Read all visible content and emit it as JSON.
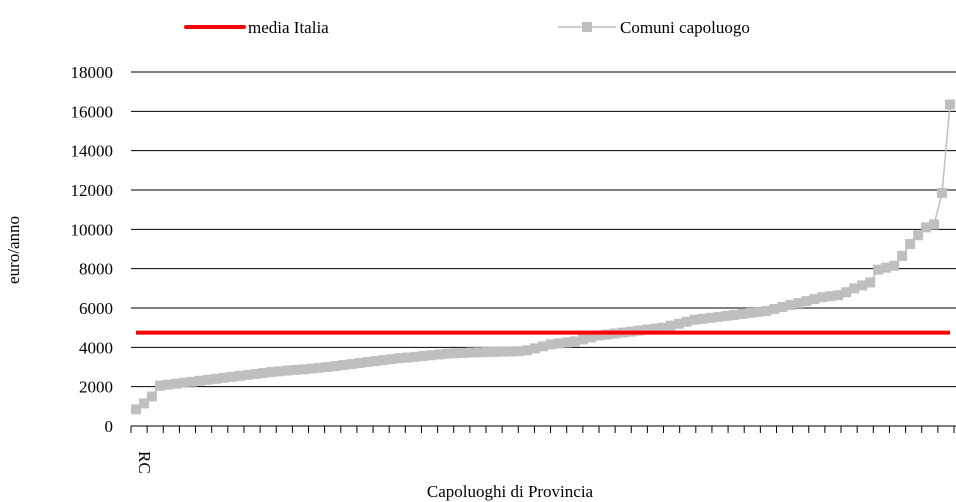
{
  "chart_data": {
    "type": "line",
    "title": "",
    "xlabel": "Capoluoghi di Provincia",
    "ylabel": "euro/anno",
    "ylim": [
      0,
      18000
    ],
    "yticks": [
      "0",
      "2000",
      "4000",
      "6000",
      "8000",
      "10000",
      "12000",
      "14000",
      "16000",
      "18000"
    ],
    "first_category_label": "RC",
    "grid": "horizontal",
    "legend_position": "top",
    "series": [
      {
        "name": "media Italia",
        "kind": "line",
        "color": "#ff0000",
        "values": [
          4750,
          4750,
          4750,
          4750,
          4750,
          4750,
          4750,
          4750,
          4750,
          4750,
          4750,
          4750,
          4750,
          4750,
          4750,
          4750,
          4750,
          4750,
          4750,
          4750,
          4750,
          4750,
          4750,
          4750,
          4750,
          4750,
          4750,
          4750,
          4750,
          4750,
          4750,
          4750,
          4750,
          4750,
          4750,
          4750,
          4750,
          4750,
          4750,
          4750,
          4750,
          4750,
          4750,
          4750,
          4750,
          4750,
          4750,
          4750,
          4750,
          4750,
          4750,
          4750,
          4750,
          4750,
          4750,
          4750,
          4750,
          4750,
          4750,
          4750,
          4750,
          4750,
          4750,
          4750,
          4750,
          4750,
          4750,
          4750,
          4750,
          4750,
          4750,
          4750,
          4750,
          4750,
          4750,
          4750,
          4750,
          4750,
          4750,
          4750,
          4750,
          4750,
          4750,
          4750,
          4750,
          4750,
          4750,
          4750,
          4750,
          4750,
          4750,
          4750,
          4750,
          4750,
          4750,
          4750,
          4750,
          4750,
          4750,
          4750,
          4750,
          4750,
          4750
        ]
      },
      {
        "name": "Comuni capoluogo",
        "kind": "line-marker",
        "color": "#bfbfbf",
        "values": [
          850,
          1150,
          1500,
          2050,
          2100,
          2150,
          2200,
          2250,
          2300,
          2350,
          2400,
          2450,
          2500,
          2550,
          2600,
          2650,
          2700,
          2750,
          2780,
          2820,
          2850,
          2880,
          2920,
          2960,
          3000,
          3050,
          3100,
          3150,
          3200,
          3250,
          3300,
          3350,
          3400,
          3450,
          3480,
          3520,
          3560,
          3600,
          3640,
          3680,
          3700,
          3720,
          3740,
          3750,
          3760,
          3770,
          3780,
          3790,
          3800,
          3850,
          3950,
          4050,
          4150,
          4200,
          4250,
          4300,
          4400,
          4500,
          4600,
          4650,
          4700,
          4750,
          4800,
          4850,
          4900,
          4950,
          5000,
          5100,
          5200,
          5300,
          5400,
          5450,
          5500,
          5550,
          5600,
          5650,
          5700,
          5750,
          5800,
          5850,
          5950,
          6050,
          6150,
          6250,
          6350,
          6450,
          6550,
          6600,
          6650,
          6800,
          7000,
          7150,
          7300,
          7950,
          8050,
          8150,
          8650,
          9250,
          9700,
          10100,
          10250,
          11850,
          16350
        ]
      }
    ]
  }
}
